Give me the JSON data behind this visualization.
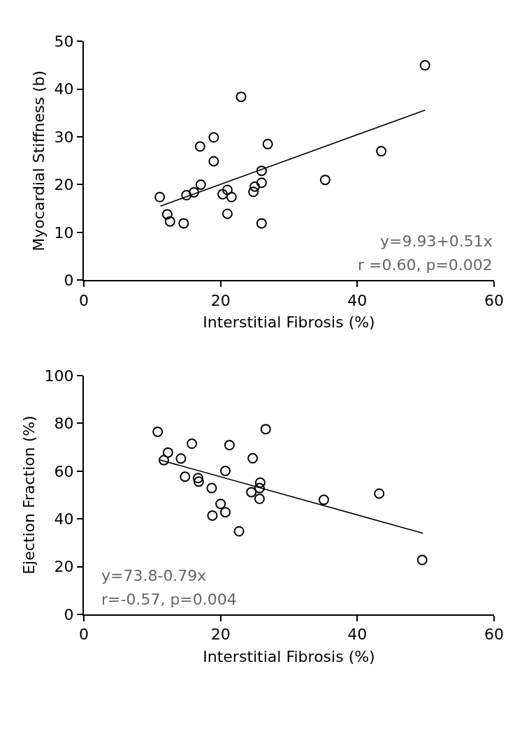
{
  "chart_data": [
    {
      "type": "scatter",
      "xlabel": "Interstitial Fibrosis (%)",
      "ylabel": "Myocardial Stiffness (b)",
      "xlim": [
        0,
        60
      ],
      "xticks": [
        0,
        20,
        40,
        60
      ],
      "ylim": [
        0,
        50
      ],
      "yticks": [
        0,
        10,
        20,
        30,
        40,
        50
      ],
      "series": [
        {
          "marker": "circle",
          "color": "#000000",
          "x": [
            11.1,
            12.2,
            12.6,
            14.6,
            15.0,
            16.1,
            17.0,
            17.1,
            19.0,
            19.0,
            20.3,
            21.0,
            21.0,
            21.6,
            23.0,
            24.8,
            25.0,
            26.0,
            26.0,
            26.0,
            26.9,
            35.3,
            43.5,
            49.9
          ],
          "values": [
            17.4,
            13.8,
            12.3,
            11.9,
            17.8,
            18.4,
            28.0,
            20.0,
            29.9,
            24.9,
            18.0,
            18.9,
            13.9,
            17.4,
            38.4,
            18.5,
            19.6,
            22.9,
            20.4,
            11.9,
            28.5,
            21.0,
            27.0,
            45.0
          ]
        },
        {
          "type": "line",
          "color": "#000000",
          "x": [
            11.2,
            49.9
          ],
          "values": [
            15.5,
            35.6
          ]
        }
      ],
      "annotations": [
        "y=9.93+0.51x",
        "r =0.60, p=0.002"
      ]
    },
    {
      "type": "scatter",
      "xlabel": "Interstitial Fibrosis (%)",
      "ylabel": "Ejection Fraction (%)",
      "xlim": [
        0,
        60
      ],
      "xticks": [
        0,
        20,
        40,
        60
      ],
      "ylim": [
        0,
        100
      ],
      "yticks": [
        0,
        20,
        40,
        60,
        80,
        100
      ],
      "series": [
        {
          "marker": "circle",
          "color": "#000000",
          "x": [
            10.8,
            12.3,
            11.7,
            14.2,
            15.8,
            14.8,
            16.7,
            16.8,
            18.7,
            20.0,
            20.7,
            18.8,
            21.3,
            20.7,
            22.7,
            24.7,
            26.6,
            25.8,
            25.7,
            24.5,
            25.7,
            35.1,
            43.2,
            49.5
          ],
          "values": [
            76.5,
            67.8,
            64.6,
            65.3,
            71.5,
            57.7,
            57.1,
            55.6,
            52.9,
            46.3,
            42.8,
            41.4,
            70.9,
            60.1,
            34.8,
            65.4,
            77.6,
            55.2,
            52.9,
            51.2,
            48.4,
            48.0,
            50.6,
            22.8
          ]
        },
        {
          "type": "line",
          "color": "#000000",
          "x": [
            11.0,
            49.6
          ],
          "values": [
            64.8,
            34.0
          ]
        }
      ],
      "annotations": [
        "y=73.8-0.79x",
        "r=-0.57, p=0.004"
      ]
    }
  ]
}
